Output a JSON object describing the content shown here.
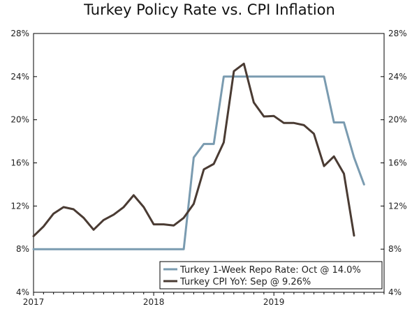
{
  "chart_data": {
    "type": "line",
    "title": "Turkey Policy Rate vs. CPI Inflation",
    "xlabel": "",
    "ylabel": "",
    "x_start": 2017.0,
    "x_end": 2019.917,
    "ylim": [
      4,
      28
    ],
    "y_ticks": [
      4,
      8,
      12,
      16,
      20,
      24,
      28
    ],
    "y_tick_labels": [
      "4%",
      "8%",
      "12%",
      "16%",
      "20%",
      "24%",
      "28%"
    ],
    "x_ticks": [
      2017,
      2018,
      2019
    ],
    "x_tick_labels": [
      "2017",
      "2018",
      "2019"
    ],
    "grid": false,
    "legend_position": "bottom-right",
    "series": [
      {
        "name": "Turkey 1-Week Repo Rate: Oct @ 14.0%",
        "color": "#7a9bb0",
        "x": [
          2017.0,
          2017.083,
          2017.167,
          2017.25,
          2017.333,
          2017.417,
          2017.5,
          2017.583,
          2017.667,
          2017.75,
          2017.833,
          2017.917,
          2018.0,
          2018.083,
          2018.167,
          2018.25,
          2018.333,
          2018.417,
          2018.5,
          2018.583,
          2018.667,
          2018.75,
          2018.833,
          2018.917,
          2019.0,
          2019.083,
          2019.167,
          2019.25,
          2019.333,
          2019.417,
          2019.5,
          2019.583,
          2019.667,
          2019.75
        ],
        "values": [
          8,
          8,
          8,
          8,
          8,
          8,
          8,
          8,
          8,
          8,
          8,
          8,
          8,
          8,
          8,
          8,
          16.5,
          17.75,
          17.75,
          24,
          24,
          24,
          24,
          24,
          24,
          24,
          24,
          24,
          24,
          24,
          19.75,
          19.75,
          16.5,
          14.0
        ]
      },
      {
        "name": "Turkey CPI YoY: Sep @ 9.26%",
        "color": "#4a3b33",
        "x": [
          2017.0,
          2017.083,
          2017.167,
          2017.25,
          2017.333,
          2017.417,
          2017.5,
          2017.583,
          2017.667,
          2017.75,
          2017.833,
          2017.917,
          2018.0,
          2018.083,
          2018.167,
          2018.25,
          2018.333,
          2018.417,
          2018.5,
          2018.583,
          2018.667,
          2018.75,
          2018.833,
          2018.917,
          2019.0,
          2019.083,
          2019.167,
          2019.25,
          2019.333,
          2019.417,
          2019.5,
          2019.583,
          2019.667
        ],
        "values": [
          9.2,
          10.1,
          11.3,
          11.9,
          11.7,
          10.9,
          9.8,
          10.7,
          11.2,
          11.9,
          13.0,
          11.9,
          10.3,
          10.3,
          10.2,
          10.9,
          12.2,
          15.4,
          15.9,
          17.9,
          24.5,
          25.2,
          21.6,
          20.3,
          20.35,
          19.7,
          19.7,
          19.5,
          18.7,
          15.7,
          16.6,
          15.0,
          9.26
        ]
      }
    ]
  }
}
